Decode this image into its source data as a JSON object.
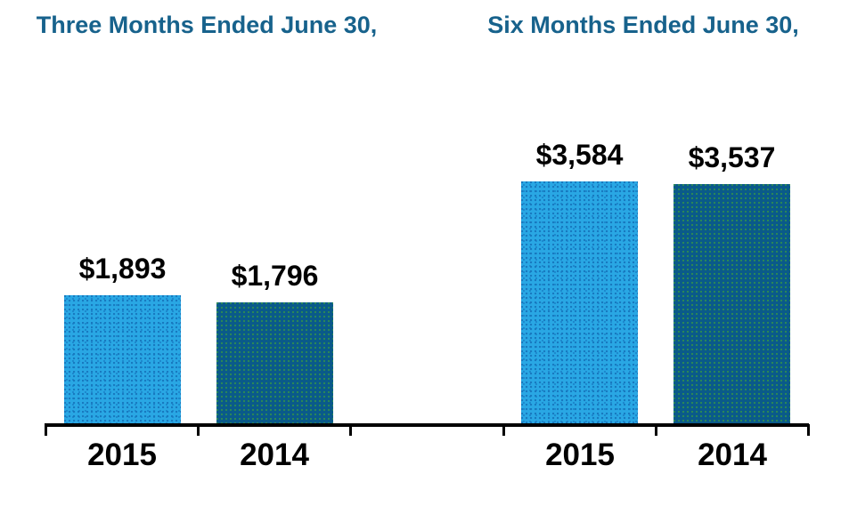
{
  "chart_data": {
    "type": "bar",
    "legend": "none",
    "gridlines": false,
    "y_axis_visible": false,
    "x_axis_baseline": true,
    "ylim": [
      0,
      3800
    ],
    "groups": [
      {
        "title": "Three Months Ended June 30,",
        "bars": [
          {
            "category": "2015",
            "series": "2015",
            "value": 1893,
            "label": "$1,893"
          },
          {
            "category": "2014",
            "series": "2014",
            "value": 1796,
            "label": "$1,796"
          }
        ]
      },
      {
        "title": "Six Months Ended June 30,",
        "bars": [
          {
            "category": "2015",
            "series": "2015",
            "value": 3584,
            "label": "$3,584"
          },
          {
            "category": "2014",
            "series": "2014",
            "value": 3537,
            "label": "$3,537"
          }
        ]
      }
    ],
    "series_colors": {
      "2015": "#29A7E4",
      "2014": "#0A5A8A"
    }
  },
  "colors": {
    "background": "#FFFFFF",
    "group_title_text": "#17628C",
    "value_label_text": "#000000",
    "year_label_text": "#000000",
    "axis_line": "#000000",
    "bar_2015_fill": "#29A7E4",
    "bar_2015_dots": "#1778BE",
    "bar_2014_fill": "#0A5A8A",
    "bar_2014_dots": "#2E8C52"
  }
}
